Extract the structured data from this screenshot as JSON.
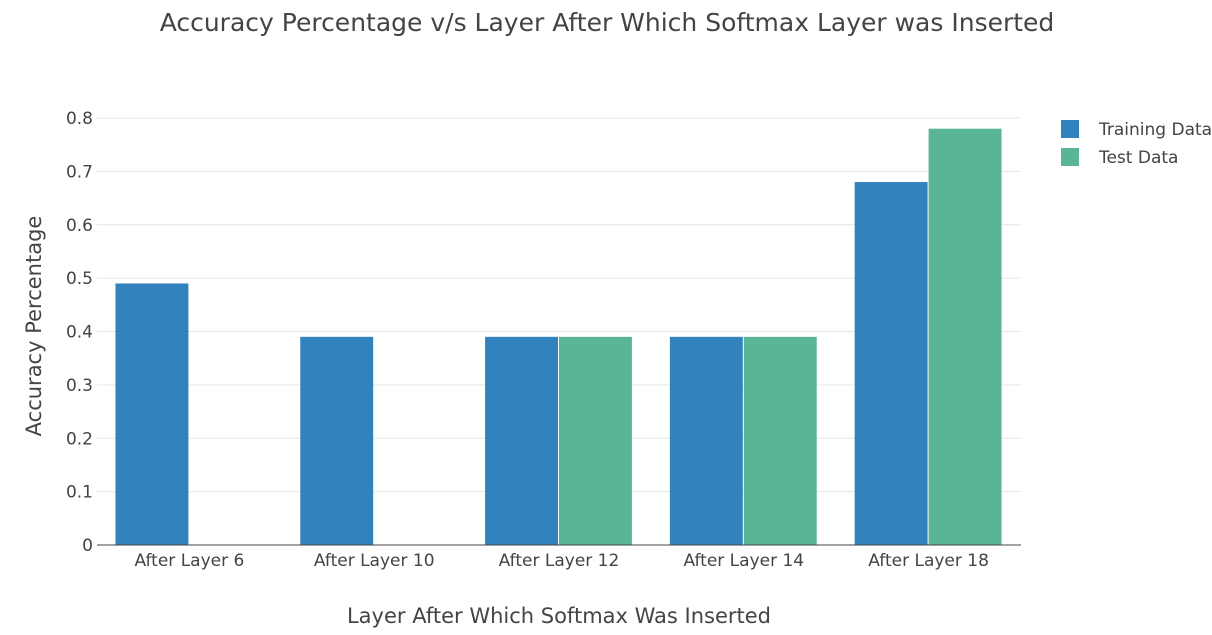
{
  "chart_data": {
    "type": "bar",
    "title": "Accuracy Percentage v/s Layer After Which Softmax Layer was Inserted",
    "xlabel": "Layer After Which Softmax Was Inserted",
    "ylabel": "Accuracy Percentage",
    "categories": [
      "After Layer 6",
      "After Layer 10",
      "After Layer 12",
      "After Layer 14",
      "After Layer 18"
    ],
    "series": [
      {
        "name": "Training Data",
        "color": "#3182bd",
        "values": [
          0.49,
          0.39,
          0.39,
          0.39,
          0.68
        ]
      },
      {
        "name": "Test Data",
        "color": "#5ab596",
        "values": [
          0,
          0,
          0.39,
          0.39,
          0.78
        ]
      }
    ],
    "ylim": [
      0,
      0.8
    ],
    "yticks": [
      "0",
      "0.1",
      "0.2",
      "0.3",
      "0.4",
      "0.5",
      "0.6",
      "0.7",
      "0.8"
    ],
    "grid": true,
    "legend_position": "top-right"
  }
}
